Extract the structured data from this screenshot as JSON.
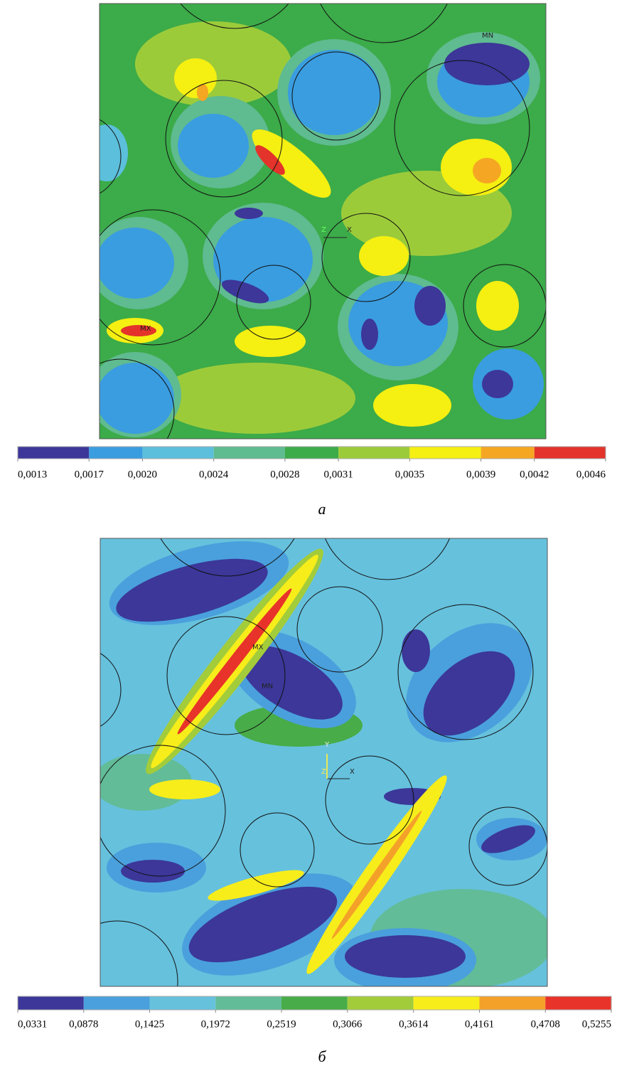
{
  "panels": [
    {
      "label": "а",
      "annotations": {
        "min": "MN",
        "max": "MX",
        "x_axis": "X",
        "z_axis": "Z"
      },
      "colorbar": {
        "ticks": [
          {
            "value": 0.0013,
            "label": "0,0013"
          },
          {
            "value": 0.0017,
            "label": "0,0017"
          },
          {
            "value": 0.002,
            "label": "0,0020"
          },
          {
            "value": 0.0024,
            "label": "0,0024"
          },
          {
            "value": 0.0028,
            "label": "0,0028"
          },
          {
            "value": 0.0031,
            "label": "0,0031"
          },
          {
            "value": 0.0035,
            "label": "0,0035"
          },
          {
            "value": 0.0039,
            "label": "0,0039"
          },
          {
            "value": 0.0042,
            "label": "0,0042"
          },
          {
            "value": 0.0046,
            "label": "0,0046"
          }
        ],
        "colors": [
          "#3c3799",
          "#3a9de0",
          "#5cbfdb",
          "#5fbb90",
          "#3cab49",
          "#9ccb3a",
          "#f5ef12",
          "#f5a623",
          "#e3332a"
        ]
      }
    },
    {
      "label": "б",
      "annotations": {
        "max": "MX",
        "min": "MN",
        "y_axis": "Y",
        "x_axis": "X",
        "z_axis": "Z"
      },
      "colorbar": {
        "ticks": [
          {
            "value": 0.0331,
            "label": "0,0331"
          },
          {
            "value": 0.0878,
            "label": "0,0878"
          },
          {
            "value": 0.1425,
            "label": "0,1425"
          },
          {
            "value": 0.1972,
            "label": "0,1972"
          },
          {
            "value": 0.2519,
            "label": "0,2519"
          },
          {
            "value": 0.3066,
            "label": "0,3066"
          },
          {
            "value": 0.3614,
            "label": "0,3614"
          },
          {
            "value": 0.4161,
            "label": "0,4161"
          },
          {
            "value": 0.4708,
            "label": "0,4708"
          },
          {
            "value": 0.5255,
            "label": "0,5255"
          }
        ],
        "colors": [
          "#3c3799",
          "#4aa0dc",
          "#66c1dd",
          "#62bc98",
          "#48ac48",
          "#a3cc3a",
          "#f7ed1a",
          "#f4a12a",
          "#e8332a"
        ]
      }
    }
  ]
}
